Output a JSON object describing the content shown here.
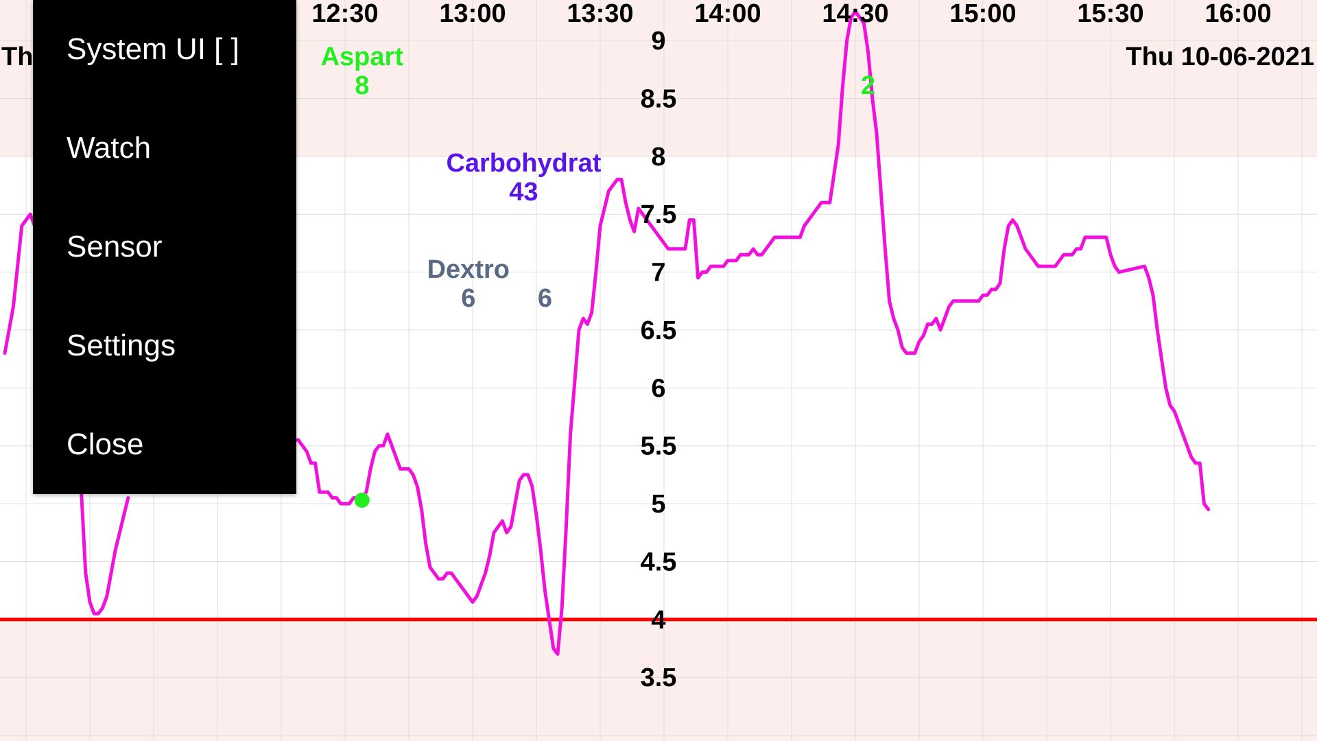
{
  "date_label": "Thu 10-06-2021",
  "date_label_clipped": "Th",
  "menu": {
    "items": [
      {
        "label": "System UI  [ ]"
      },
      {
        "label": "Watch"
      },
      {
        "label": "Sensor"
      },
      {
        "label": "Settings"
      },
      {
        "label": "Close"
      }
    ]
  },
  "colors": {
    "high_zone": "#fdeeee",
    "low_zone": "#fdeeee",
    "glucose_line": "#f012dc",
    "low_threshold": "#ff0000",
    "grid": "#dddddd",
    "aspart": "#22ee22",
    "carbohydrate": "#5a14e6",
    "dextro": "#5a6a85",
    "menu_bg": "#000000",
    "menu_text": "#ffffff"
  },
  "chart_data": {
    "type": "line",
    "x_ticks": [
      "12:30",
      "13:00",
      "13:30",
      "14:00",
      "14:30",
      "15:00",
      "15:30",
      "16:00"
    ],
    "y_ticks": [
      3.5,
      4,
      4.5,
      5,
      5.5,
      6,
      6.5,
      7,
      7.5,
      8,
      8.5,
      9
    ],
    "xlim": [
      "11:10",
      "16:19"
    ],
    "ylim": [
      2.95,
      9.35
    ],
    "high_zone_from": 8,
    "low_threshold": 4,
    "glucose_series": [
      [
        "11:10",
        6.3
      ],
      [
        "11:12",
        6.7
      ],
      [
        "11:14",
        7.4
      ],
      [
        "11:16",
        7.5
      ],
      [
        "11:17",
        7.4
      ],
      [
        "11:18",
        7.35
      ],
      [
        "11:26",
        5.9
      ],
      [
        "11:28",
        5.1
      ],
      [
        "11:29",
        4.4
      ],
      [
        "11:30",
        4.15
      ],
      [
        "11:31",
        4.05
      ],
      [
        "11:32",
        4.05
      ],
      [
        "11:33",
        4.1
      ],
      [
        "11:34",
        4.2
      ],
      [
        "11:35",
        4.4
      ],
      [
        "11:36",
        4.6
      ],
      [
        "11:37",
        4.75
      ],
      [
        "11:38",
        4.9
      ],
      [
        "11:39",
        5.05
      ],
      [
        "12:09",
        6.15
      ],
      [
        "12:10",
        6.05
      ],
      [
        "12:11",
        6.05
      ],
      [
        "12:12",
        6.0
      ],
      [
        "12:13",
        5.9
      ],
      [
        "12:14",
        5.8
      ],
      [
        "12:15",
        5.7
      ],
      [
        "12:16",
        5.65
      ],
      [
        "12:17",
        5.6
      ],
      [
        "12:18",
        5.55
      ],
      [
        "12:19",
        5.55
      ],
      [
        "12:20",
        5.5
      ],
      [
        "12:21",
        5.45
      ],
      [
        "12:22",
        5.35
      ],
      [
        "12:23",
        5.35
      ],
      [
        "12:24",
        5.1
      ],
      [
        "12:26",
        5.1
      ],
      [
        "12:27",
        5.05
      ],
      [
        "12:28",
        5.05
      ],
      [
        "12:29",
        5.0
      ],
      [
        "12:31",
        5.0
      ],
      [
        "12:32",
        5.05
      ],
      [
        "12:34",
        5.05
      ],
      [
        "12:35",
        5.1
      ],
      [
        "12:36",
        5.3
      ],
      [
        "12:37",
        5.45
      ],
      [
        "12:38",
        5.5
      ],
      [
        "12:39",
        5.5
      ],
      [
        "12:40",
        5.6
      ],
      [
        "12:41",
        5.5
      ],
      [
        "12:42",
        5.4
      ],
      [
        "12:43",
        5.3
      ],
      [
        "12:45",
        5.3
      ],
      [
        "12:46",
        5.25
      ],
      [
        "12:47",
        5.15
      ],
      [
        "12:48",
        4.95
      ],
      [
        "12:49",
        4.65
      ],
      [
        "12:50",
        4.45
      ],
      [
        "12:51",
        4.4
      ],
      [
        "12:52",
        4.35
      ],
      [
        "12:53",
        4.35
      ],
      [
        "12:54",
        4.4
      ],
      [
        "12:55",
        4.4
      ],
      [
        "12:56",
        4.35
      ],
      [
        "12:57",
        4.3
      ],
      [
        "12:58",
        4.25
      ],
      [
        "12:59",
        4.2
      ],
      [
        "13:00",
        4.15
      ],
      [
        "13:01",
        4.2
      ],
      [
        "13:02",
        4.3
      ],
      [
        "13:03",
        4.4
      ],
      [
        "13:04",
        4.55
      ],
      [
        "13:05",
        4.75
      ],
      [
        "13:06",
        4.8
      ],
      [
        "13:07",
        4.85
      ],
      [
        "13:08",
        4.75
      ],
      [
        "13:09",
        4.8
      ],
      [
        "13:10",
        5.0
      ],
      [
        "13:11",
        5.2
      ],
      [
        "13:12",
        5.25
      ],
      [
        "13:13",
        5.25
      ],
      [
        "13:14",
        5.15
      ],
      [
        "13:15",
        4.9
      ],
      [
        "13:16",
        4.6
      ],
      [
        "13:17",
        4.25
      ],
      [
        "13:18",
        4.0
      ],
      [
        "13:19",
        3.75
      ],
      [
        "13:20",
        3.7
      ],
      [
        "13:21",
        4.1
      ],
      [
        "13:22",
        4.8
      ],
      [
        "13:23",
        5.6
      ],
      [
        "13:24",
        6.05
      ],
      [
        "13:25",
        6.5
      ],
      [
        "13:26",
        6.6
      ],
      [
        "13:27",
        6.55
      ],
      [
        "13:28",
        6.65
      ],
      [
        "13:29",
        7.0
      ],
      [
        "13:30",
        7.4
      ],
      [
        "13:31",
        7.55
      ],
      [
        "13:32",
        7.7
      ],
      [
        "13:33",
        7.75
      ],
      [
        "13:34",
        7.8
      ],
      [
        "13:35",
        7.8
      ],
      [
        "13:36",
        7.6
      ],
      [
        "13:37",
        7.45
      ],
      [
        "13:38",
        7.35
      ],
      [
        "13:39",
        7.55
      ],
      [
        "13:40",
        7.5
      ],
      [
        "13:42",
        7.4
      ],
      [
        "13:44",
        7.3
      ],
      [
        "13:46",
        7.2
      ],
      [
        "13:50",
        7.2
      ],
      [
        "13:51",
        7.45
      ],
      [
        "13:52",
        7.45
      ],
      [
        "13:53",
        6.95
      ],
      [
        "13:54",
        7.0
      ],
      [
        "13:55",
        7.0
      ],
      [
        "13:56",
        7.05
      ],
      [
        "13:59",
        7.05
      ],
      [
        "14:00",
        7.1
      ],
      [
        "14:01",
        7.1
      ],
      [
        "14:02",
        7.1
      ],
      [
        "14:03",
        7.15
      ],
      [
        "14:05",
        7.15
      ],
      [
        "14:06",
        7.2
      ],
      [
        "14:07",
        7.15
      ],
      [
        "14:08",
        7.15
      ],
      [
        "14:10",
        7.25
      ],
      [
        "14:11",
        7.3
      ],
      [
        "14:17",
        7.3
      ],
      [
        "14:18",
        7.4
      ],
      [
        "14:20",
        7.5
      ],
      [
        "14:22",
        7.6
      ],
      [
        "14:24",
        7.6
      ],
      [
        "14:25",
        7.85
      ],
      [
        "14:26",
        8.1
      ],
      [
        "14:27",
        8.6
      ],
      [
        "14:28",
        9.0
      ],
      [
        "14:29",
        9.2
      ],
      [
        "14:30",
        9.25
      ],
      [
        "14:31",
        9.2
      ],
      [
        "14:32",
        9.15
      ],
      [
        "14:33",
        8.9
      ],
      [
        "14:34",
        8.5
      ],
      [
        "14:35",
        8.2
      ],
      [
        "14:36",
        7.7
      ],
      [
        "14:37",
        7.2
      ],
      [
        "14:38",
        6.75
      ],
      [
        "14:39",
        6.6
      ],
      [
        "14:40",
        6.5
      ],
      [
        "14:41",
        6.35
      ],
      [
        "14:42",
        6.3
      ],
      [
        "14:44",
        6.3
      ],
      [
        "14:45",
        6.4
      ],
      [
        "14:46",
        6.45
      ],
      [
        "14:47",
        6.55
      ],
      [
        "14:48",
        6.55
      ],
      [
        "14:49",
        6.6
      ],
      [
        "14:50",
        6.5
      ],
      [
        "14:51",
        6.6
      ],
      [
        "14:52",
        6.7
      ],
      [
        "14:53",
        6.75
      ],
      [
        "14:59",
        6.75
      ],
      [
        "15:00",
        6.8
      ],
      [
        "15:01",
        6.8
      ],
      [
        "15:02",
        6.85
      ],
      [
        "15:03",
        6.85
      ],
      [
        "15:04",
        6.9
      ],
      [
        "15:05",
        7.2
      ],
      [
        "15:06",
        7.4
      ],
      [
        "15:07",
        7.45
      ],
      [
        "15:08",
        7.4
      ],
      [
        "15:09",
        7.3
      ],
      [
        "15:10",
        7.2
      ],
      [
        "15:11",
        7.15
      ],
      [
        "15:12",
        7.1
      ],
      [
        "15:13",
        7.05
      ],
      [
        "15:17",
        7.05
      ],
      [
        "15:18",
        7.1
      ],
      [
        "15:19",
        7.15
      ],
      [
        "15:21",
        7.15
      ],
      [
        "15:22",
        7.2
      ],
      [
        "15:23",
        7.2
      ],
      [
        "15:24",
        7.3
      ],
      [
        "15:29",
        7.3
      ],
      [
        "15:30",
        7.15
      ],
      [
        "15:31",
        7.05
      ],
      [
        "15:32",
        7.0
      ],
      [
        "15:38",
        7.05
      ],
      [
        "15:39",
        6.95
      ],
      [
        "15:40",
        6.8
      ],
      [
        "15:41",
        6.5
      ],
      [
        "15:42",
        6.25
      ],
      [
        "15:43",
        6.0
      ],
      [
        "15:44",
        5.85
      ],
      [
        "15:45",
        5.8
      ],
      [
        "15:46",
        5.7
      ],
      [
        "15:47",
        5.6
      ],
      [
        "15:48",
        5.5
      ],
      [
        "15:49",
        5.4
      ],
      [
        "15:50",
        5.35
      ],
      [
        "15:51",
        5.35
      ],
      [
        "15:52",
        5.0
      ],
      [
        "15:53",
        4.95
      ]
    ],
    "gap_starts": [
      "11:26",
      "12:09"
    ],
    "markers": [
      {
        "time": "12:34",
        "value": 5.03,
        "color": "#22ee22"
      }
    ],
    "annotations": [
      {
        "time": "12:34",
        "label": "Aspart",
        "value": "8",
        "color_key": "aspart",
        "name": "aspart-annotation"
      },
      {
        "time": "13:12",
        "label": "Carbohydrat",
        "value": "43",
        "color_key": "carbohydrate",
        "name": "carbohydrate-annotation"
      },
      {
        "time": "12:59",
        "label": "Dextro",
        "value": "6",
        "color_key": "dextro",
        "name": "dextro-annotation"
      },
      {
        "time": "13:17",
        "label": "",
        "value": "6",
        "color_key": "dextro",
        "name": "dextro-annotation-2"
      },
      {
        "time": "14:33",
        "label": "",
        "value": "2",
        "color_key": "aspart",
        "name": "aspart-annotation-2"
      }
    ]
  }
}
